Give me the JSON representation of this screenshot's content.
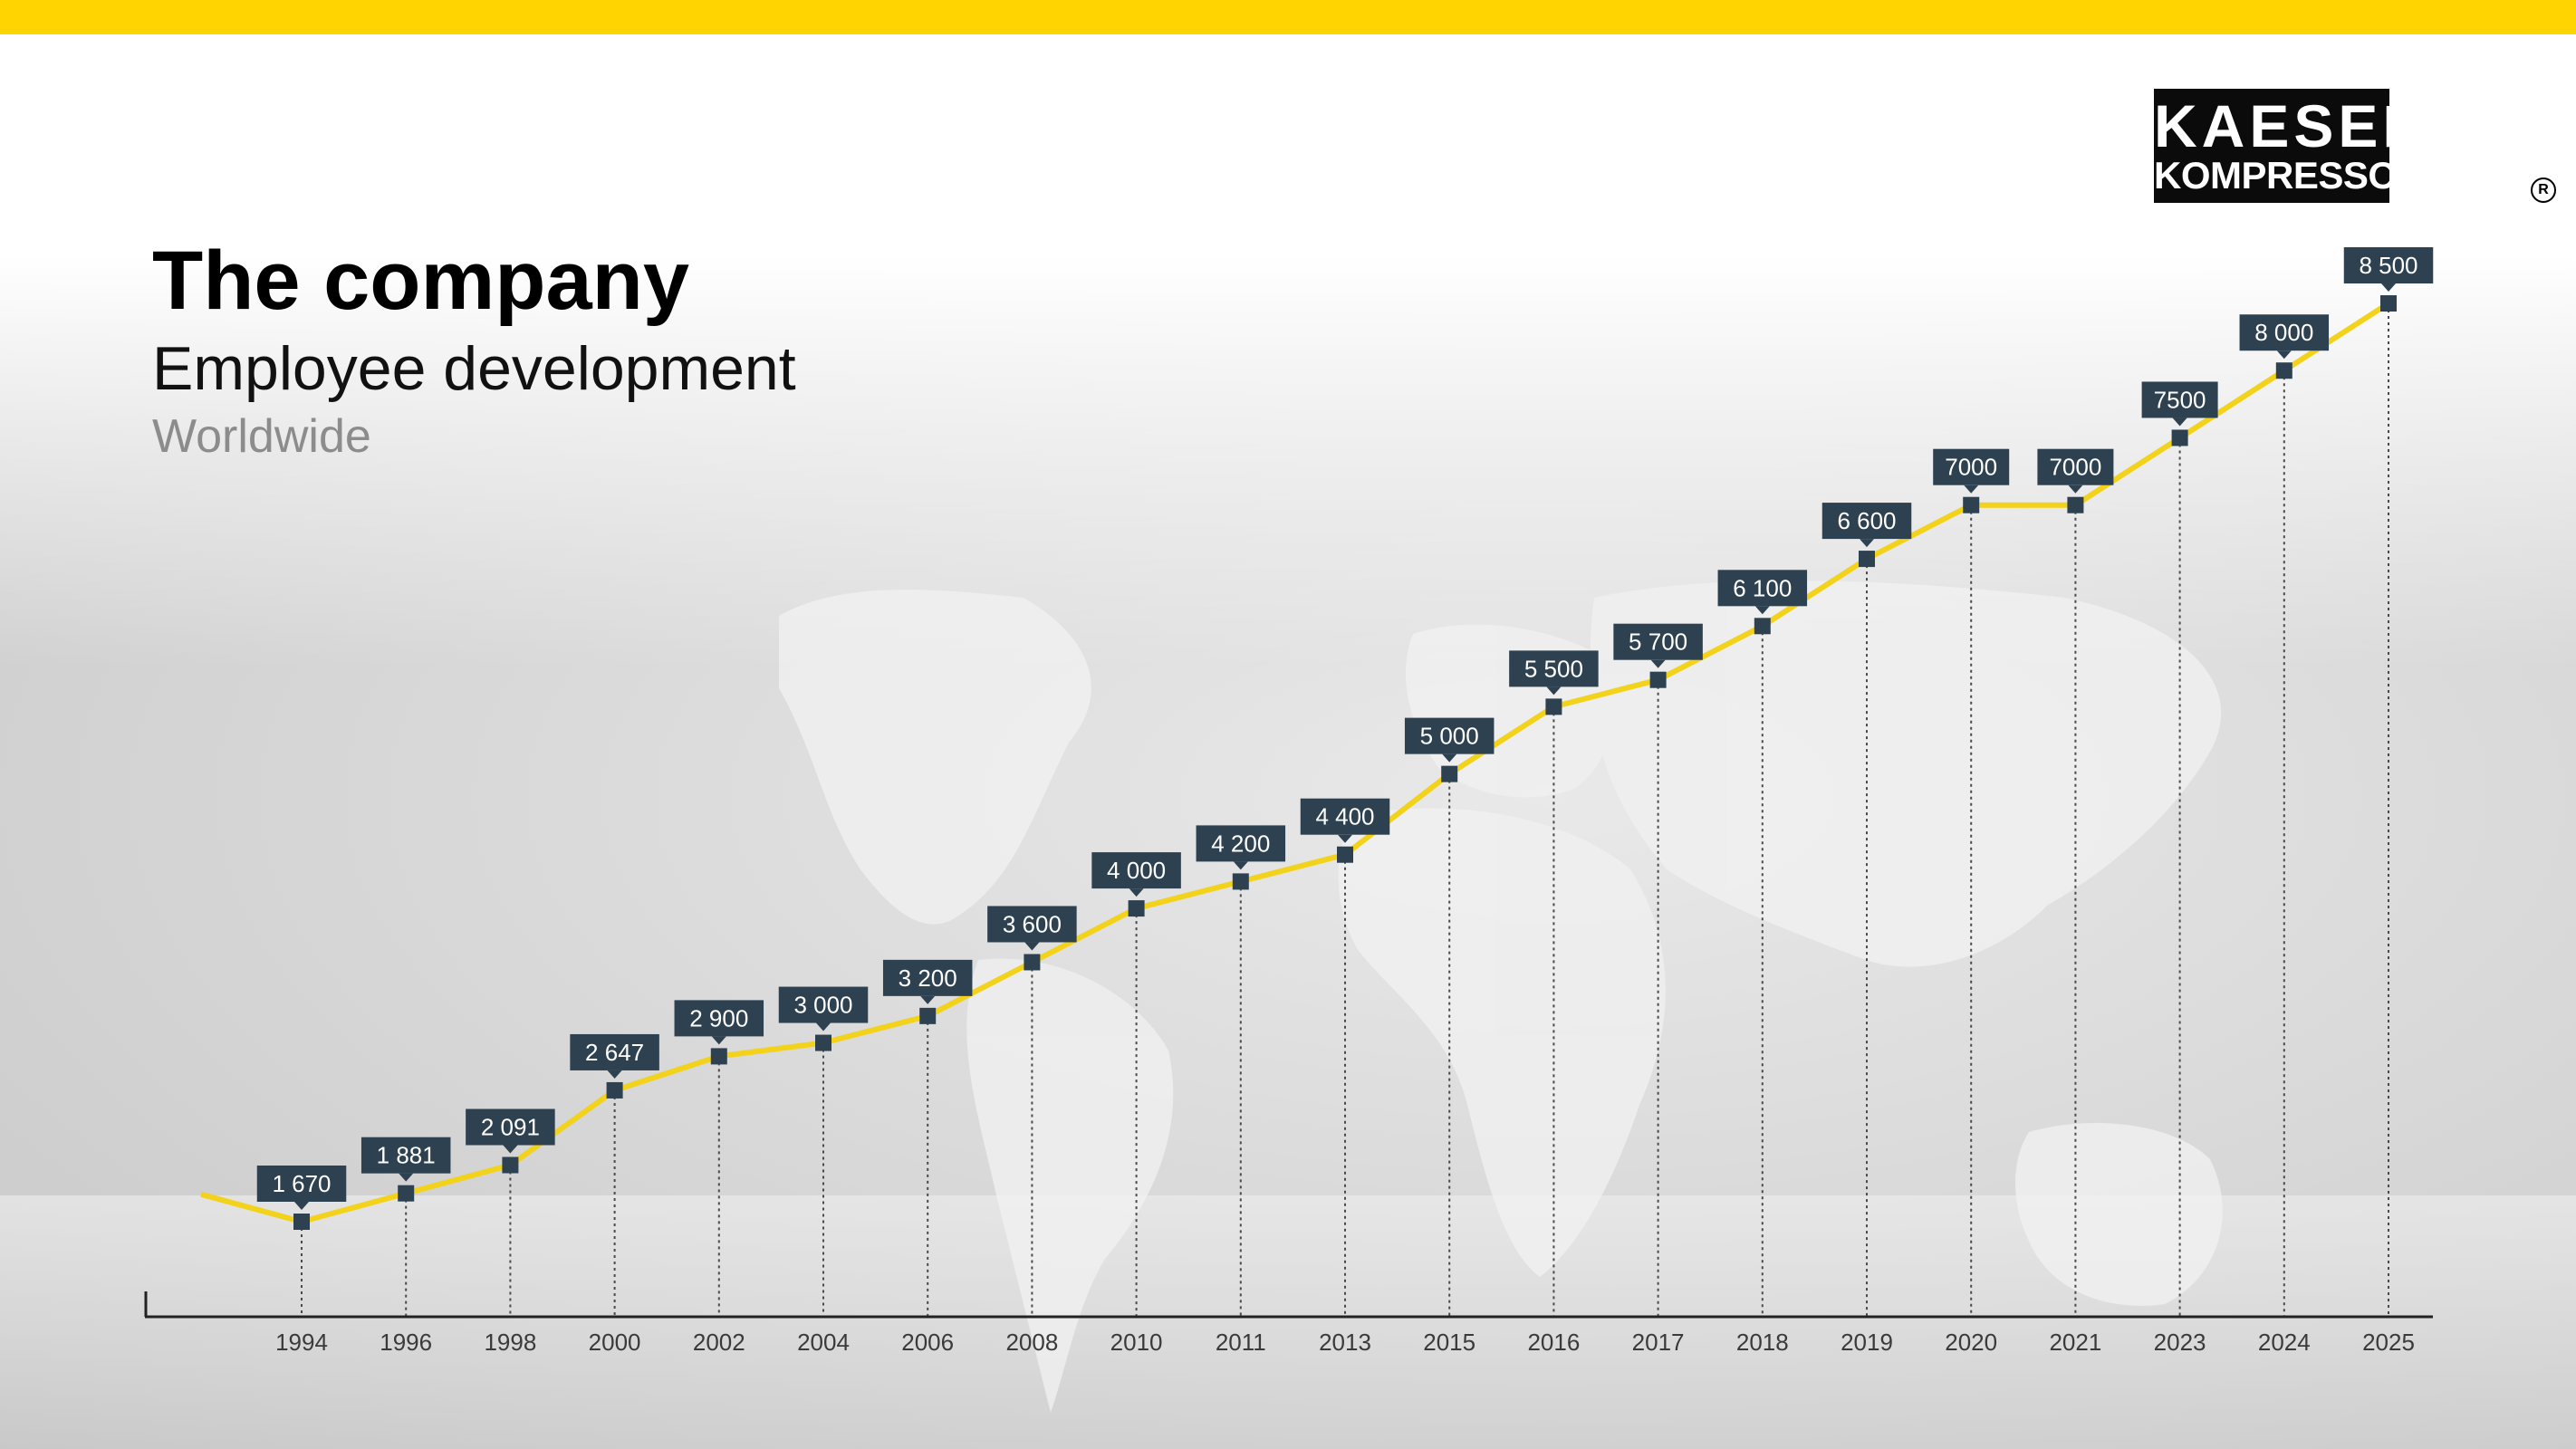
{
  "page": {
    "title": "The company",
    "subtitle": "Employee development",
    "subsubtitle": "Worldwide"
  },
  "logo": {
    "line1": "KAESER",
    "line2": "KOMPRESSOREN",
    "registered": "R"
  },
  "colors": {
    "accent": "#ffd400",
    "line": "#f2d21a",
    "label_box": "#2e4150",
    "axis": "#222222"
  },
  "chart_data": {
    "type": "line",
    "title": "",
    "xlabel": "",
    "ylabel": "",
    "grid": false,
    "categories": [
      "1994",
      "1996",
      "1998",
      "2000",
      "2002",
      "2004",
      "2006",
      "2008",
      "2010",
      "2011",
      "2013",
      "2015",
      "2016",
      "2017",
      "2018",
      "2019",
      "2020",
      "2021",
      "2023",
      "2024",
      "2025"
    ],
    "values": [
      1670,
      1881,
      2091,
      2647,
      2900,
      3000,
      3200,
      3600,
      4000,
      4200,
      4400,
      5000,
      5500,
      5700,
      6100,
      6600,
      7000,
      7000,
      7500,
      8000,
      8500
    ],
    "value_labels": [
      "1 670",
      "1 881",
      "2 091",
      "2 647",
      "2 900",
      "3 000",
      "3 200",
      "3 600",
      "4 000",
      "4 200",
      "4 400",
      "5 000",
      "5 500",
      "5 700",
      "6 100",
      "6 600",
      "7000",
      "7000",
      "7500",
      "8 000",
      "8 500"
    ]
  }
}
